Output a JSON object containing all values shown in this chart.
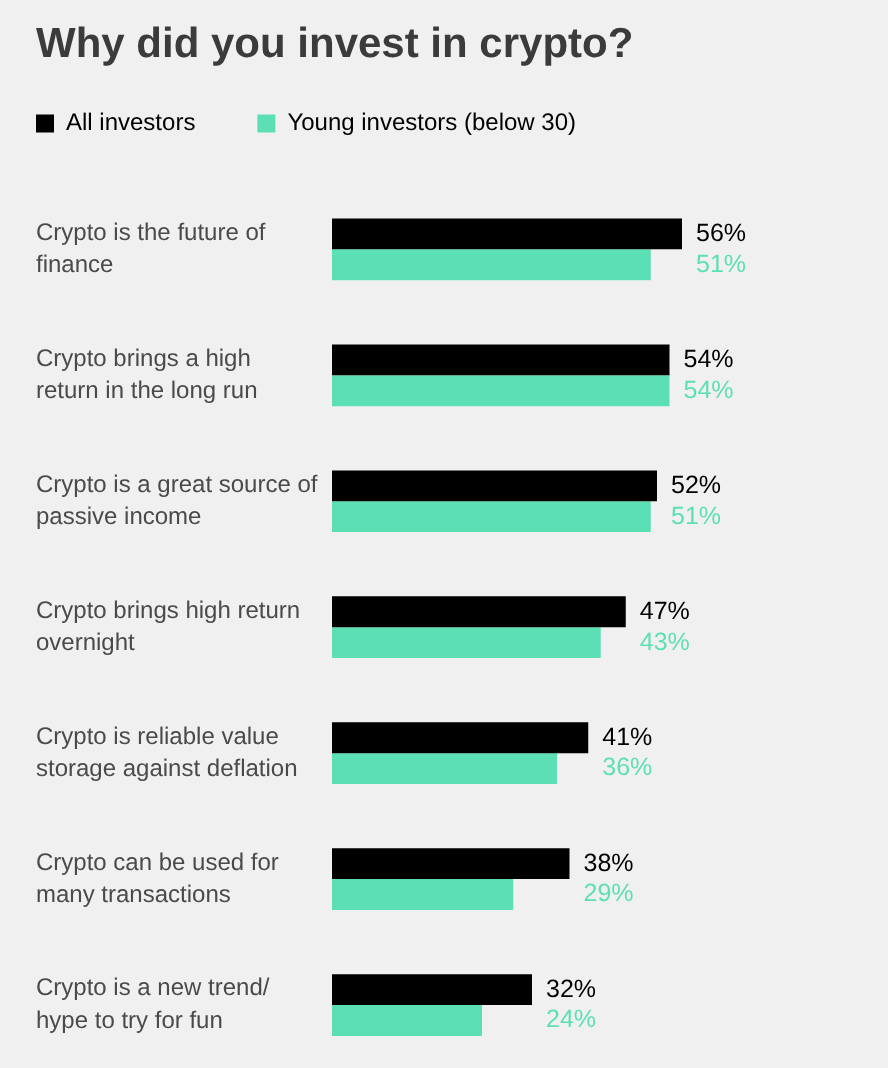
{
  "chart_data": {
    "type": "bar",
    "orientation": "horizontal",
    "title": "Why did you invest in crypto?",
    "categories": [
      "Crypto is the future of finance",
      "Crypto brings a high return in the long run",
      "Crypto is a great source of passive income",
      "Crypto brings high return overnight",
      "Crypto is reliable value storage against deflation",
      "Crypto can be used for many transactions",
      "Crypto is a new trend/ hype to try for fun"
    ],
    "series": [
      {
        "name": "All investors",
        "color": "#000000",
        "values": [
          56,
          54,
          52,
          47,
          41,
          38,
          32
        ],
        "value_labels": [
          "56%",
          "54%",
          "52%",
          "47%",
          "41%",
          "38%",
          "32%"
        ]
      },
      {
        "name": "Young investors (below 30)",
        "color": "#5ddfb5",
        "values": [
          51,
          54,
          51,
          43,
          36,
          29,
          24
        ],
        "value_labels": [
          "51%",
          "54%",
          "51%",
          "43%",
          "36%",
          "29%",
          "24%"
        ]
      }
    ],
    "legend": "top left",
    "grid": false,
    "tick_labels": "y"
  }
}
